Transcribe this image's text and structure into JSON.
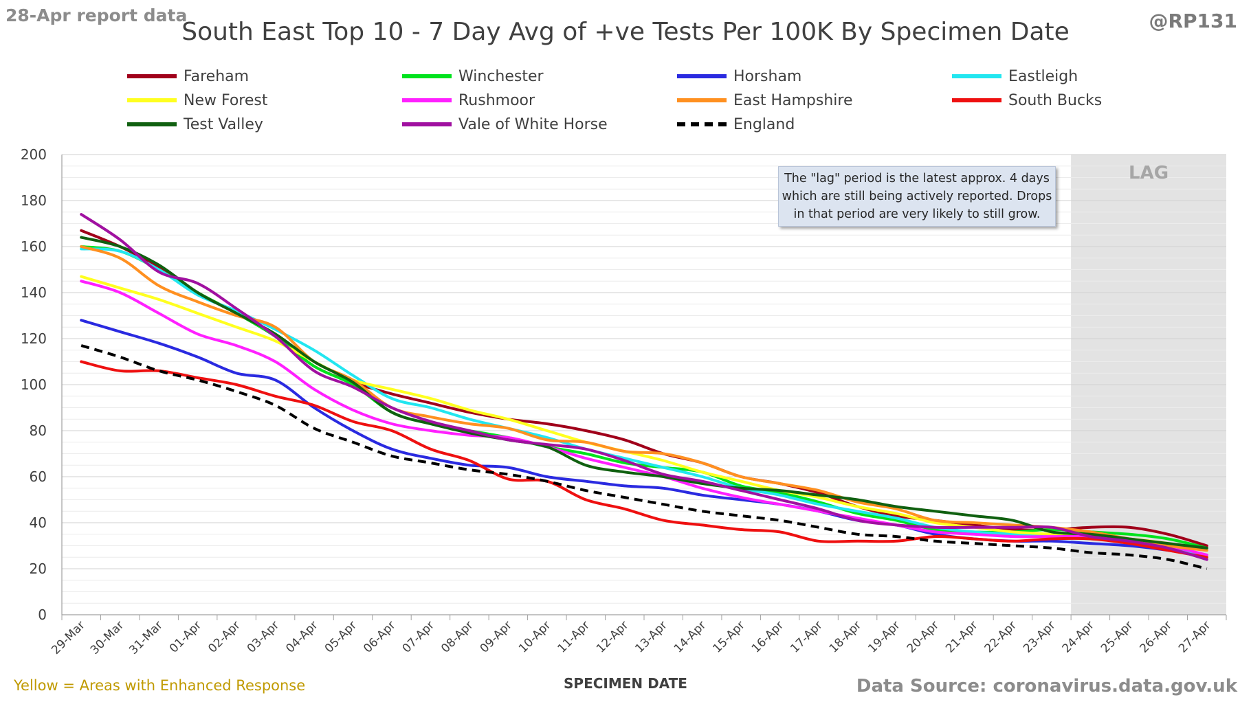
{
  "header": {
    "report_label": "28-Apr report data",
    "handle": "@RP131"
  },
  "footer": {
    "note": "Yellow = Areas with Enhanced Response",
    "source": "Data Source: coronavirus.data.gov.uk"
  },
  "annotation": {
    "text": "The \"lag\" period is the latest approx. 4 days which are still being actively reported. Drops in that period are very likely to still grow.",
    "lag_label": "LAG"
  },
  "chart_data": {
    "type": "line",
    "title": "South East Top 10 - 7 Day Avg of +ve Tests Per 100K By Specimen Date",
    "xlabel": "SPECIMEN DATE",
    "ylabel": "",
    "ylim": [
      0,
      200
    ],
    "yticks": [
      0,
      20,
      40,
      60,
      80,
      100,
      120,
      140,
      160,
      180,
      200
    ],
    "grid": true,
    "legend_position": "top",
    "lag_region": {
      "from": "24-Apr",
      "to": "27-Apr"
    },
    "categories": [
      "29-Mar",
      "30-Mar",
      "31-Mar",
      "01-Apr",
      "02-Apr",
      "03-Apr",
      "04-Apr",
      "05-Apr",
      "06-Apr",
      "07-Apr",
      "08-Apr",
      "09-Apr",
      "10-Apr",
      "11-Apr",
      "12-Apr",
      "13-Apr",
      "14-Apr",
      "15-Apr",
      "16-Apr",
      "17-Apr",
      "18-Apr",
      "19-Apr",
      "20-Apr",
      "21-Apr",
      "22-Apr",
      "23-Apr",
      "24-Apr",
      "25-Apr",
      "26-Apr",
      "27-Apr"
    ],
    "series": [
      {
        "name": "Fareham",
        "color": "#a0001a",
        "dashed": false,
        "values": [
          167,
          160,
          151,
          140,
          131,
          121,
          108,
          101,
          96,
          92,
          88,
          85,
          83,
          80,
          76,
          70,
          66,
          60,
          57,
          53,
          47,
          43,
          41,
          39,
          37,
          37,
          38,
          38,
          35,
          30
        ]
      },
      {
        "name": "Winchester",
        "color": "#00e21d",
        "dashed": false,
        "values": [
          160,
          158,
          150,
          140,
          131,
          121,
          108,
          100,
          88,
          83,
          80,
          77,
          73,
          70,
          66,
          64,
          62,
          56,
          53,
          49,
          44,
          41,
          37,
          36,
          36,
          37,
          36,
          35,
          33,
          29
        ]
      },
      {
        "name": "Horsham",
        "color": "#2a2ae0",
        "dashed": false,
        "values": [
          128,
          123,
          118,
          112,
          105,
          102,
          90,
          80,
          72,
          68,
          65,
          64,
          60,
          58,
          56,
          55,
          52,
          50,
          48,
          45,
          41,
          39,
          35,
          33,
          32,
          32,
          31,
          30,
          28,
          25
        ]
      },
      {
        "name": "Eastleigh",
        "color": "#22e6f0",
        "dashed": false,
        "values": [
          159,
          158,
          150,
          139,
          132,
          124,
          115,
          104,
          94,
          90,
          85,
          81,
          77,
          72,
          68,
          64,
          60,
          55,
          52,
          48,
          45,
          42,
          38,
          36,
          35,
          34,
          33,
          32,
          29,
          26
        ]
      },
      {
        "name": "New Forest",
        "color": "#ffff20",
        "dashed": false,
        "values": [
          147,
          142,
          137,
          131,
          125,
          119,
          110,
          102,
          98,
          94,
          89,
          85,
          80,
          75,
          71,
          67,
          62,
          58,
          54,
          51,
          47,
          44,
          40,
          38,
          36,
          35,
          34,
          33,
          31,
          28
        ]
      },
      {
        "name": "Rushmoor",
        "color": "#ff20ff",
        "dashed": false,
        "values": [
          145,
          140,
          131,
          122,
          117,
          110,
          98,
          89,
          83,
          80,
          78,
          77,
          73,
          68,
          64,
          60,
          55,
          51,
          48,
          45,
          42,
          39,
          36,
          35,
          34,
          34,
          34,
          33,
          30,
          26
        ]
      },
      {
        "name": "East Hampshire",
        "color": "#ff9020",
        "dashed": false,
        "values": [
          160,
          155,
          143,
          136,
          130,
          125,
          110,
          102,
          90,
          86,
          83,
          81,
          76,
          75,
          71,
          70,
          66,
          60,
          57,
          54,
          49,
          46,
          41,
          40,
          39,
          38,
          36,
          33,
          30,
          28
        ]
      },
      {
        "name": "South Bucks",
        "color": "#ee1010",
        "dashed": false,
        "values": [
          110,
          106,
          106,
          103,
          100,
          95,
          91,
          84,
          80,
          72,
          67,
          59,
          58,
          50,
          46,
          41,
          39,
          37,
          36,
          32,
          32,
          32,
          34,
          33,
          32,
          33,
          33,
          31,
          28,
          25
        ]
      },
      {
        "name": "Test Valley",
        "color": "#106010",
        "dashed": false,
        "values": [
          164,
          160,
          152,
          140,
          131,
          122,
          110,
          101,
          88,
          83,
          79,
          76,
          73,
          65,
          62,
          60,
          57,
          55,
          54,
          52,
          50,
          47,
          45,
          43,
          41,
          36,
          35,
          33,
          31,
          29
        ]
      },
      {
        "name": "Vale of White Horse",
        "color": "#a010a0",
        "dashed": false,
        "values": [
          174,
          163,
          149,
          144,
          133,
          121,
          106,
          99,
          90,
          84,
          80,
          76,
          74,
          72,
          67,
          61,
          58,
          54,
          50,
          46,
          41,
          39,
          38,
          38,
          38,
          38,
          34,
          32,
          29,
          24
        ]
      },
      {
        "name": "England",
        "color": "#000000",
        "dashed": true,
        "values": [
          117,
          112,
          106,
          102,
          97,
          91,
          81,
          75,
          69,
          66,
          63,
          61,
          58,
          54,
          51,
          48,
          45,
          43,
          41,
          38,
          35,
          34,
          32,
          31,
          30,
          29,
          27,
          26,
          24,
          20
        ]
      }
    ]
  }
}
